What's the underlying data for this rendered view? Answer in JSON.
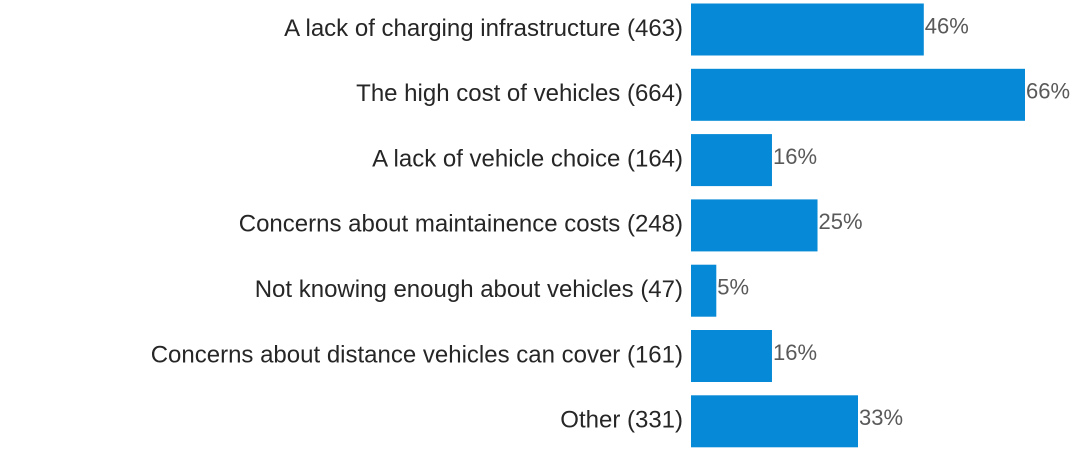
{
  "chart_data": {
    "type": "bar",
    "orientation": "horizontal",
    "categories": [
      "A lack of charging infrastructure (463)",
      "The high cost of vehicles (664)",
      "A lack of vehicle choice (164)",
      "Concerns about maintainence costs (248)",
      "Not knowing enough about vehicles (47)",
      "Concerns about distance vehicles can cover (161)",
      "Other (331)"
    ],
    "values": [
      46,
      66,
      16,
      25,
      5,
      16,
      33
    ],
    "value_labels": [
      "46%",
      "66%",
      "16%",
      "25%",
      "5%",
      "16%",
      "33%"
    ],
    "color": "#0689d6"
  }
}
